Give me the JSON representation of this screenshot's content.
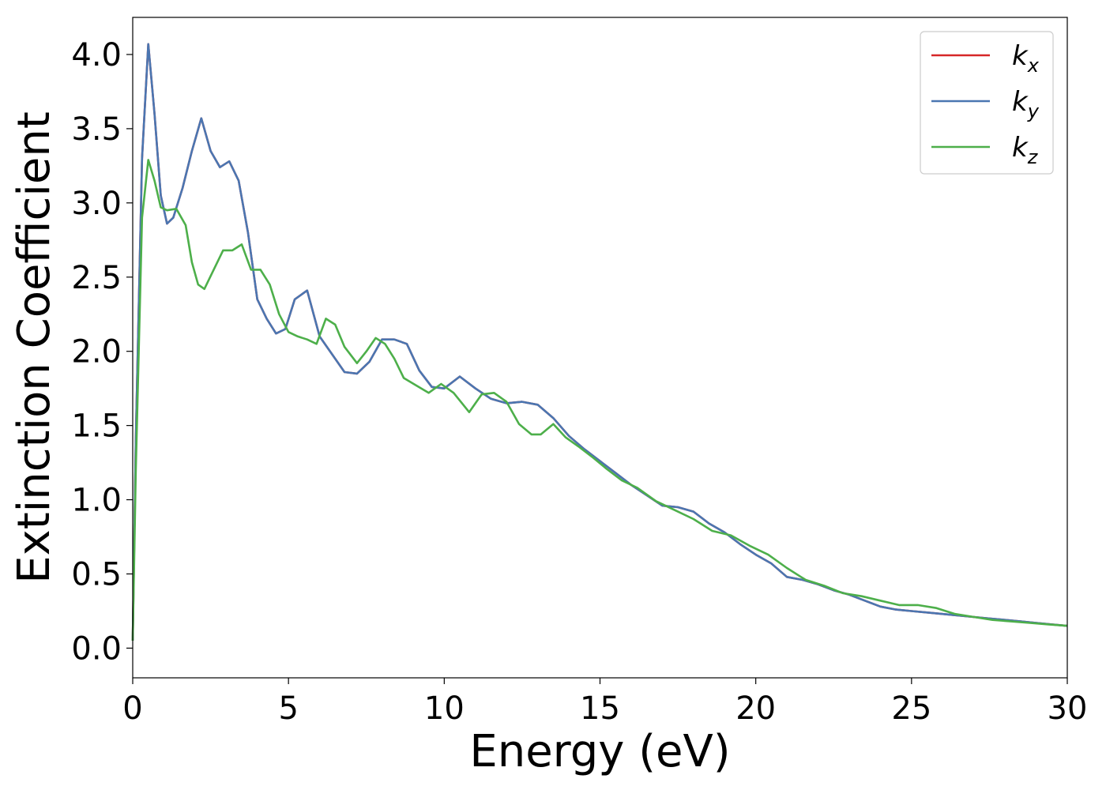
{
  "chart_data": {
    "type": "line",
    "title": "",
    "xlabel": "Energy (eV)",
    "ylabel": "Extinction Coefficient",
    "xlim": [
      0,
      30
    ],
    "ylim": [
      -0.2,
      4.25
    ],
    "xticks": [
      "0",
      "5",
      "10",
      "15",
      "20",
      "25",
      "30"
    ],
    "yticks": [
      "0.0",
      "0.5",
      "1.0",
      "1.5",
      "2.0",
      "2.5",
      "3.0",
      "3.5",
      "4.0"
    ],
    "grid": false,
    "legend_position": "top-right",
    "series": [
      {
        "name": "k_x",
        "legend_base": "k",
        "legend_sub": "x",
        "color": "#d62728",
        "x": [
          0,
          0.1,
          0.3,
          0.5,
          0.7,
          0.9,
          1.1,
          1.3,
          1.6,
          1.9,
          2.2,
          2.5,
          2.8,
          3.1,
          3.4,
          3.7,
          4.0,
          4.3,
          4.6,
          4.9,
          5.2,
          5.6,
          6.0,
          6.4,
          6.8,
          7.2,
          7.6,
          8.0,
          8.4,
          8.8,
          9.2,
          9.6,
          10.0,
          10.5,
          11.0,
          11.5,
          12.0,
          12.5,
          13.0,
          13.5,
          14.0,
          14.5,
          15.0,
          15.5,
          16.0,
          16.5,
          17.0,
          17.5,
          18.0,
          18.5,
          19.0,
          19.5,
          20.0,
          20.5,
          21.0,
          21.5,
          22.0,
          22.5,
          23.0,
          23.5,
          24.0,
          24.5,
          25.0,
          25.5,
          26.0,
          26.5,
          27.0,
          27.5,
          28.0,
          28.5,
          29.0,
          29.5,
          30.0
        ],
        "y": [
          0.05,
          1.4,
          3.3,
          4.07,
          3.6,
          3.05,
          2.86,
          2.9,
          3.1,
          3.35,
          3.57,
          3.35,
          3.24,
          3.28,
          3.15,
          2.8,
          2.35,
          2.22,
          2.12,
          2.15,
          2.35,
          2.41,
          2.1,
          1.98,
          1.86,
          1.85,
          1.93,
          2.08,
          2.08,
          2.05,
          1.87,
          1.76,
          1.75,
          1.83,
          1.75,
          1.68,
          1.65,
          1.66,
          1.64,
          1.55,
          1.43,
          1.34,
          1.26,
          1.18,
          1.1,
          1.03,
          0.96,
          0.95,
          0.92,
          0.84,
          0.78,
          0.7,
          0.63,
          0.57,
          0.48,
          0.46,
          0.43,
          0.39,
          0.36,
          0.32,
          0.28,
          0.26,
          0.25,
          0.24,
          0.23,
          0.22,
          0.21,
          0.2,
          0.19,
          0.18,
          0.17,
          0.16,
          0.15
        ]
      },
      {
        "name": "k_y",
        "legend_base": "k",
        "legend_sub": "y",
        "color": "#4a76b1",
        "x": [
          0,
          0.1,
          0.3,
          0.5,
          0.7,
          0.9,
          1.1,
          1.3,
          1.6,
          1.9,
          2.2,
          2.5,
          2.8,
          3.1,
          3.4,
          3.7,
          4.0,
          4.3,
          4.6,
          4.9,
          5.2,
          5.6,
          6.0,
          6.4,
          6.8,
          7.2,
          7.6,
          8.0,
          8.4,
          8.8,
          9.2,
          9.6,
          10.0,
          10.5,
          11.0,
          11.5,
          12.0,
          12.5,
          13.0,
          13.5,
          14.0,
          14.5,
          15.0,
          15.5,
          16.0,
          16.5,
          17.0,
          17.5,
          18.0,
          18.5,
          19.0,
          19.5,
          20.0,
          20.5,
          21.0,
          21.5,
          22.0,
          22.5,
          23.0,
          23.5,
          24.0,
          24.5,
          25.0,
          25.5,
          26.0,
          26.5,
          27.0,
          27.5,
          28.0,
          28.5,
          29.0,
          29.5,
          30.0
        ],
        "y": [
          0.05,
          1.4,
          3.3,
          4.07,
          3.6,
          3.05,
          2.86,
          2.9,
          3.1,
          3.35,
          3.57,
          3.35,
          3.24,
          3.28,
          3.15,
          2.8,
          2.35,
          2.22,
          2.12,
          2.15,
          2.35,
          2.41,
          2.1,
          1.98,
          1.86,
          1.85,
          1.93,
          2.08,
          2.08,
          2.05,
          1.87,
          1.76,
          1.75,
          1.83,
          1.75,
          1.68,
          1.65,
          1.66,
          1.64,
          1.55,
          1.43,
          1.34,
          1.26,
          1.18,
          1.1,
          1.03,
          0.96,
          0.95,
          0.92,
          0.84,
          0.78,
          0.7,
          0.63,
          0.57,
          0.48,
          0.46,
          0.43,
          0.39,
          0.36,
          0.32,
          0.28,
          0.26,
          0.25,
          0.24,
          0.23,
          0.22,
          0.21,
          0.2,
          0.19,
          0.18,
          0.17,
          0.16,
          0.15
        ]
      },
      {
        "name": "k_z",
        "legend_base": "k",
        "legend_sub": "z",
        "color": "#4daf4a",
        "x": [
          0,
          0.1,
          0.3,
          0.5,
          0.7,
          0.9,
          1.1,
          1.4,
          1.7,
          1.9,
          2.1,
          2.3,
          2.6,
          2.9,
          3.2,
          3.5,
          3.8,
          4.1,
          4.4,
          4.7,
          5.0,
          5.3,
          5.6,
          5.9,
          6.2,
          6.5,
          6.8,
          7.2,
          7.5,
          7.8,
          8.1,
          8.4,
          8.7,
          9.1,
          9.5,
          9.9,
          10.3,
          10.8,
          11.2,
          11.6,
          12.0,
          12.4,
          12.8,
          13.1,
          13.5,
          13.9,
          14.3,
          14.8,
          15.2,
          15.7,
          16.2,
          16.8,
          17.4,
          18.0,
          18.6,
          19.2,
          19.8,
          20.4,
          21.0,
          21.6,
          22.2,
          22.8,
          23.4,
          24.0,
          24.6,
          25.2,
          25.8,
          26.4,
          27.0,
          27.6,
          28.2,
          28.8,
          29.4,
          30.0
        ],
        "y": [
          0.05,
          1.2,
          2.9,
          3.29,
          3.15,
          2.97,
          2.95,
          2.96,
          2.85,
          2.6,
          2.45,
          2.42,
          2.55,
          2.68,
          2.68,
          2.72,
          2.55,
          2.55,
          2.45,
          2.25,
          2.13,
          2.1,
          2.08,
          2.05,
          2.22,
          2.18,
          2.03,
          1.92,
          2.0,
          2.09,
          2.05,
          1.95,
          1.82,
          1.77,
          1.72,
          1.78,
          1.72,
          1.59,
          1.71,
          1.72,
          1.66,
          1.51,
          1.44,
          1.44,
          1.51,
          1.42,
          1.36,
          1.28,
          1.21,
          1.13,
          1.08,
          0.99,
          0.93,
          0.87,
          0.79,
          0.76,
          0.69,
          0.63,
          0.54,
          0.46,
          0.42,
          0.37,
          0.35,
          0.32,
          0.29,
          0.29,
          0.27,
          0.23,
          0.21,
          0.19,
          0.18,
          0.17,
          0.16,
          0.15
        ]
      }
    ]
  }
}
